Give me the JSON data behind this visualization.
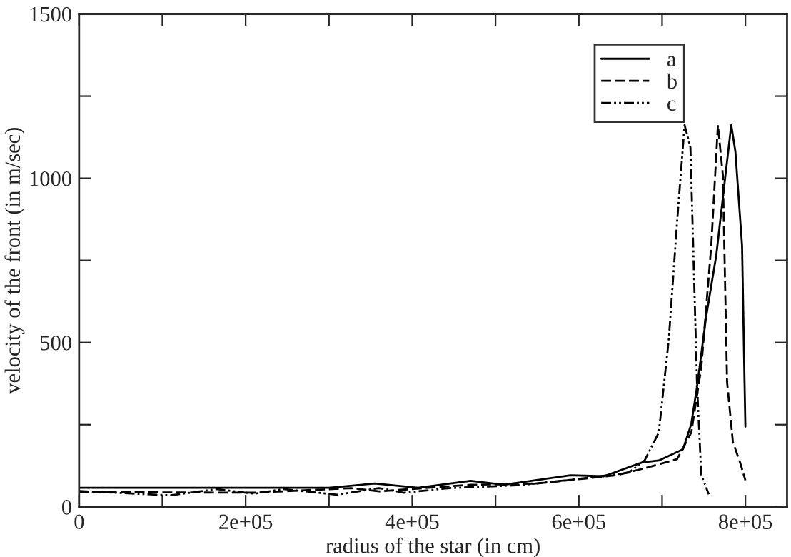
{
  "chart_data": {
    "type": "line",
    "xlabel": "radius of the star (in cm)",
    "ylabel": "velocity of the front (in m/sec)",
    "xlim": [
      0,
      850000
    ],
    "ylim": [
      0,
      1500
    ],
    "xticks": [
      0,
      {
        "value": 100000,
        "label": null
      },
      {
        "value": 200000,
        "label": "2e+05"
      },
      {
        "value": 300000,
        "label": null
      },
      {
        "value": 400000,
        "label": "4e+05"
      },
      {
        "value": 500000,
        "label": null
      },
      {
        "value": 600000,
        "label": "6e+05"
      },
      {
        "value": 700000,
        "label": null
      },
      {
        "value": 800000,
        "label": "8e+05"
      }
    ],
    "yticks": [
      0,
      {
        "value": 250,
        "label": null
      },
      500,
      {
        "value": 750,
        "label": null
      },
      1000,
      {
        "value": 1250,
        "label": null
      },
      1500
    ],
    "grid": false,
    "legend": "top right",
    "marker": "none",
    "series": [
      {
        "name": "a",
        "color": "#000000",
        "line_style": "solid",
        "x": [
          0,
          100000,
          200000,
          300000,
          355000,
          407000,
          470000,
          510000,
          590000,
          630000,
          676000,
          696000,
          725000,
          735000,
          742000,
          753000,
          765000,
          776000,
          783000,
          788000,
          796000,
          799000,
          800000
        ],
        "values": [
          58,
          58,
          58,
          58,
          71,
          58,
          79,
          67,
          96,
          93,
          135,
          141,
          175,
          252,
          367,
          581,
          765,
          1008,
          1162,
          1081,
          795,
          376,
          244
        ]
      },
      {
        "name": "b",
        "color": "#000000",
        "line_style": "dashed",
        "x": [
          0,
          210000,
          327000,
          360000,
          470000,
          550000,
          645000,
          680000,
          718000,
          735000,
          747000,
          759000,
          767000,
          773000,
          778000,
          785000,
          794000,
          800000
        ],
        "values": [
          45,
          43,
          57,
          47,
          67,
          71,
          96,
          118,
          145,
          226,
          423,
          795,
          1162,
          1008,
          380,
          197,
          132,
          81
        ]
      },
      {
        "name": "c",
        "color": "#000000",
        "line_style": "dashdotdot",
        "x": [
          0,
          110000,
          165000,
          210000,
          245000,
          310000,
          360000,
          390000,
          445000,
          530000,
          600000,
          660000,
          679000,
          696000,
          708000,
          718000,
          727000,
          734000,
          742000,
          747000,
          756000
        ],
        "values": [
          48,
          35,
          54,
          40,
          54,
          37,
          57,
          43,
          57,
          66,
          85,
          104,
          141,
          226,
          509,
          868,
          1162,
          1094,
          367,
          98,
          38
        ]
      }
    ]
  }
}
